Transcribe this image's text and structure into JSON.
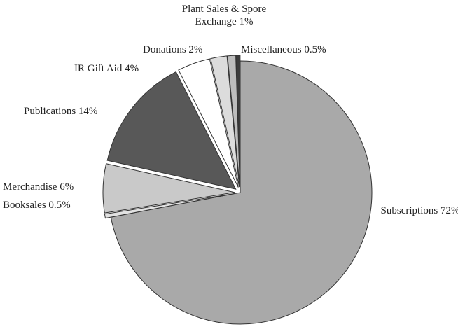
{
  "chart_data": {
    "type": "pie",
    "categories": [
      "Subscriptions",
      "Booksales",
      "Merchandise",
      "Publications",
      "IR Gift Aid",
      "Donations",
      "Plant Sales & Spore Exchange",
      "Miscellaneous"
    ],
    "values": [
      72,
      0.5,
      6,
      14,
      4,
      2,
      1,
      0.5
    ],
    "value_labels": [
      "72%",
      "0.5%",
      "6%",
      "14%",
      "4%",
      "2%",
      "1%",
      "0.5%"
    ],
    "colors": [
      "#a9a9a9",
      "#e2e2e2",
      "#c9c9c9",
      "#585858",
      "#ffffff",
      "#dcdcdc",
      "#bdbdbd",
      "#3c3c3c"
    ]
  }
}
